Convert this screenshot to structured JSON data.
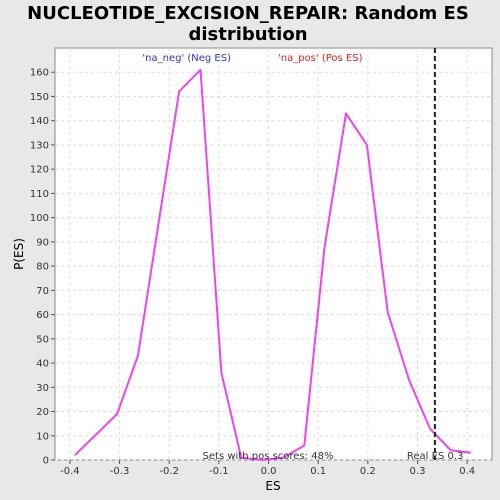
{
  "chart_data": {
    "type": "line",
    "title_line1": "NUCLEOTIDE_EXCISION_REPAIR: Random ES",
    "title_line2": "distribution",
    "xlabel": "ES",
    "ylabel": "P(ES)",
    "xlim": [
      -0.43,
      0.45
    ],
    "ylim": [
      0,
      170
    ],
    "x_ticks": [
      -0.4,
      -0.3,
      -0.2,
      -0.1,
      0.0,
      0.1,
      0.2,
      0.3,
      0.4
    ],
    "x_tick_labels": [
      "-0.4",
      "-0.3",
      "-0.2",
      "-0.1",
      "0.0",
      "0.1",
      "0.2",
      "0.3",
      "0.4"
    ],
    "y_ticks": [
      0,
      10,
      20,
      30,
      40,
      50,
      60,
      70,
      80,
      90,
      100,
      110,
      120,
      130,
      140,
      150,
      160
    ],
    "grid": true,
    "legend": {
      "placement": "top-center",
      "neg_label": "'na_neg' (Neg ES)",
      "pos_label": "'na_pos' (Pos ES)",
      "neg_color": "#3333cc",
      "pos_color": "#dd2222"
    },
    "series": [
      {
        "color": "#ee44ee",
        "x": [
          -0.39,
          -0.305,
          -0.263,
          -0.18,
          -0.137,
          -0.095,
          -0.055,
          -0.012,
          0.03,
          0.072,
          0.113,
          0.156,
          0.198,
          0.24,
          0.283,
          0.325,
          0.367,
          0.408
        ],
        "y": [
          2,
          19,
          43,
          152,
          161,
          36,
          1,
          0,
          1,
          6,
          88,
          143,
          130,
          61,
          33,
          13,
          4,
          3
        ]
      }
    ],
    "real_es": {
      "x": 0.335,
      "label": "Real ES 0.3"
    },
    "pos_scores_label": "Sets with pos scores: 48%"
  }
}
